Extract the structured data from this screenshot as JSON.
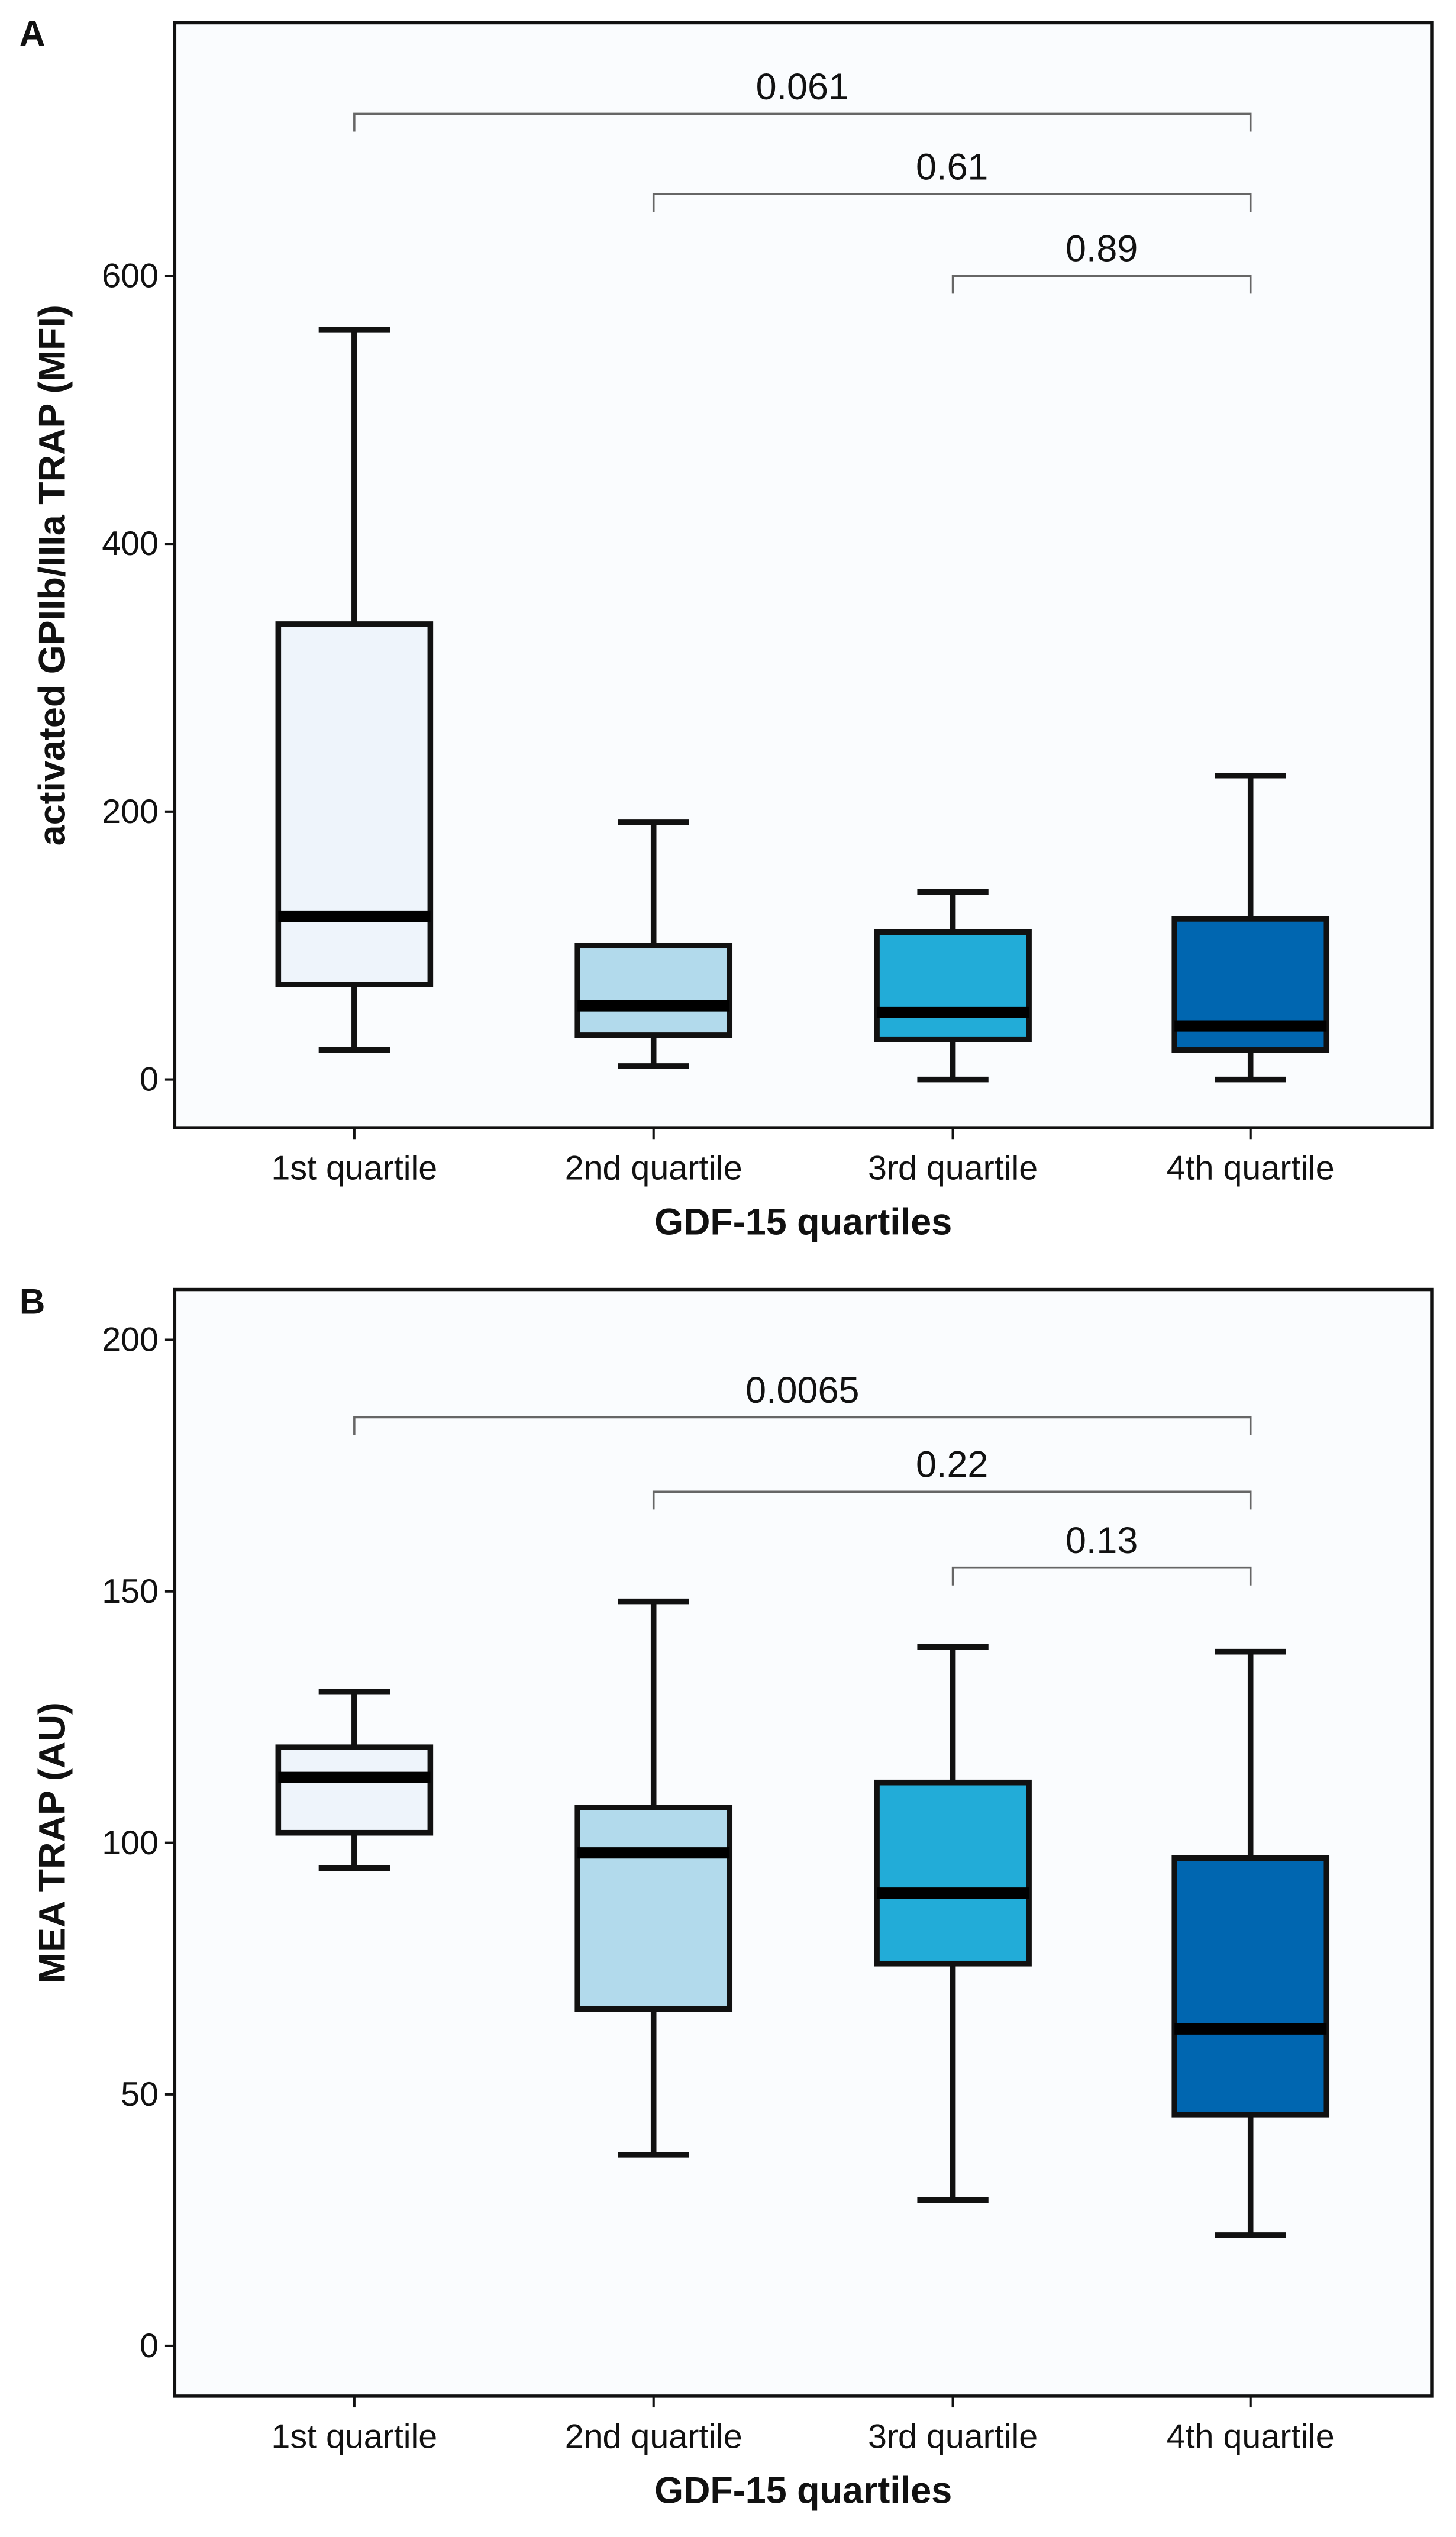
{
  "chart_data": [
    {
      "type": "box",
      "panel_label": "A",
      "xlabel": "GDF-15 quartiles",
      "ylabel": "activated GPIIb/IIIa TRAP (MFI)",
      "ylim": [
        -36,
        789
      ],
      "yticks": [
        0,
        200,
        400,
        600
      ],
      "categories": [
        "1st quartile",
        "2nd quartile",
        "3rd quartile",
        "4th quartile"
      ],
      "colors": [
        "#eef4fb",
        "#b2daec",
        "#22acd8",
        "#0066b0"
      ],
      "boxes": [
        {
          "min": 22,
          "q1": 71,
          "median": 122,
          "q3": 340,
          "max": 560
        },
        {
          "min": 10,
          "q1": 33,
          "median": 55,
          "q3": 100,
          "max": 192
        },
        {
          "min": 0,
          "q1": 30,
          "median": 50,
          "q3": 110,
          "max": 140
        },
        {
          "min": 0,
          "q1": 22,
          "median": 40,
          "q3": 120,
          "max": 227
        }
      ],
      "comparisons": [
        {
          "from": 0,
          "to": 3,
          "p": "0.061",
          "y": 721
        },
        {
          "from": 1,
          "to": 3,
          "p": "0.61",
          "y": 661
        },
        {
          "from": 2,
          "to": 3,
          "p": "0.89",
          "y": 600
        }
      ]
    },
    {
      "type": "box",
      "panel_label": "B",
      "xlabel": "GDF-15 quartiles",
      "ylabel": "MEA TRAP (AU)",
      "ylim": [
        -10,
        210
      ],
      "yticks": [
        0,
        50,
        100,
        150,
        200
      ],
      "categories": [
        "1st quartile",
        "2nd quartile",
        "3rd quartile",
        "4th quartile"
      ],
      "colors": [
        "#eef4fb",
        "#b2daec",
        "#22acd8",
        "#0066b0"
      ],
      "boxes": [
        {
          "min": 95,
          "q1": 102,
          "median": 113,
          "q3": 119,
          "max": 130
        },
        {
          "min": 38,
          "q1": 67,
          "median": 98,
          "q3": 107,
          "max": 148
        },
        {
          "min": 29,
          "q1": 76,
          "median": 90,
          "q3": 112,
          "max": 139
        },
        {
          "min": 22,
          "q1": 46,
          "median": 63,
          "q3": 97,
          "max": 138
        }
      ],
      "comparisons": [
        {
          "from": 0,
          "to": 3,
          "p": "0.0065",
          "y": 184.6
        },
        {
          "from": 1,
          "to": 3,
          "p": "0.22",
          "y": 169.8
        },
        {
          "from": 2,
          "to": 3,
          "p": "0.13",
          "y": 154.7
        }
      ]
    }
  ]
}
